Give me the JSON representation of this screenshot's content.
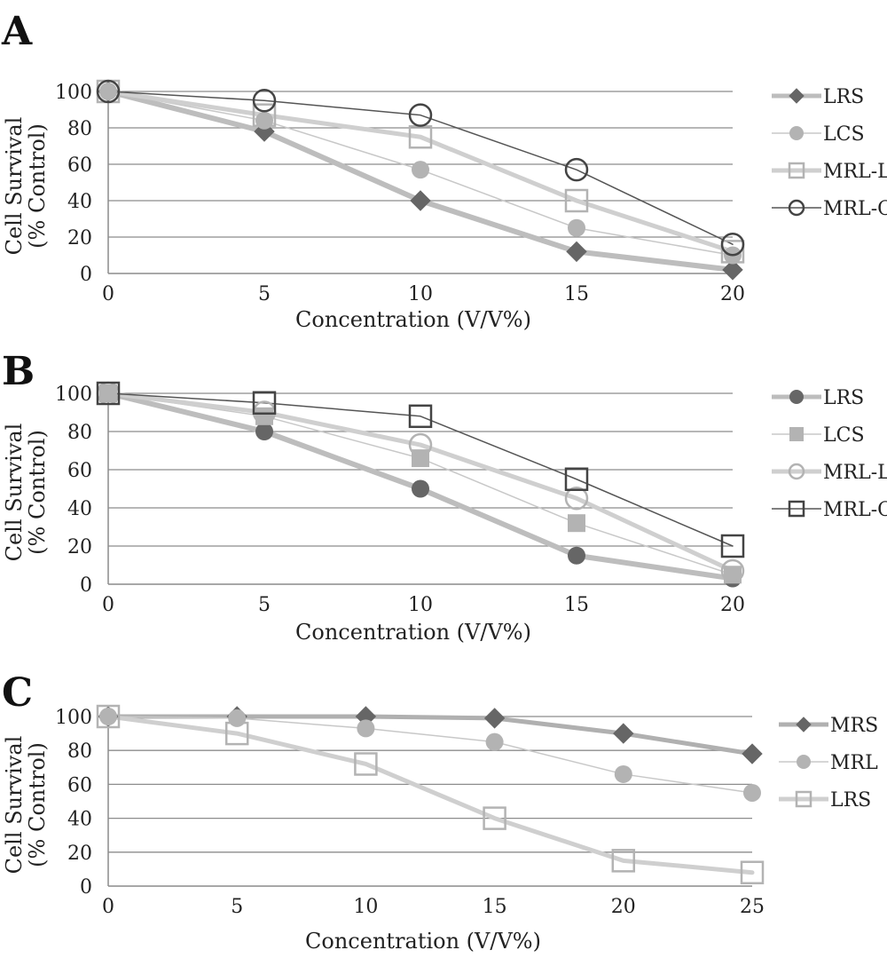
{
  "chart_data": [
    {
      "type": "line",
      "panel": "A",
      "xlabel": "Concentration (V/V%)",
      "ylabel": [
        "Cell Survival",
        "(% Control)"
      ],
      "x": [
        0,
        5,
        10,
        15,
        20
      ],
      "xticks": [
        "0",
        "5",
        "10",
        "15",
        "20"
      ],
      "yticks": [
        "0",
        "20",
        "40",
        "60",
        "80",
        "100"
      ],
      "ylim": [
        0,
        100
      ],
      "grid": true,
      "legend": "right",
      "series": [
        {
          "name": "LRS",
          "values": [
            100,
            78,
            40,
            12,
            2
          ],
          "marker": "diamond",
          "filled": true,
          "color": "#666666",
          "line": "#bdbdbd",
          "width": 6
        },
        {
          "name": "LCS",
          "values": [
            100,
            84,
            57,
            25,
            10
          ],
          "marker": "circle",
          "filled": true,
          "color": "#b3b3b3",
          "line": "#c8c8c8",
          "width": 1.5
        },
        {
          "name": "MRL-L",
          "values": [
            100,
            87,
            75,
            40,
            12
          ],
          "marker": "square",
          "filled": false,
          "color": "#b3b3b3",
          "line": "#cfcfcf",
          "width": 5
        },
        {
          "name": "MRL-C",
          "values": [
            100,
            95,
            87,
            57,
            16
          ],
          "marker": "circle",
          "filled": false,
          "color": "#444444",
          "line": "#555555",
          "width": 1.5
        }
      ]
    },
    {
      "type": "line",
      "panel": "B",
      "xlabel": "Concentration (V/V%)",
      "ylabel": [
        "Cell Survival",
        "(% Control)"
      ],
      "x": [
        0,
        5,
        10,
        15,
        20
      ],
      "xticks": [
        "0",
        "5",
        "10",
        "15",
        "20"
      ],
      "yticks": [
        "0",
        "20",
        "40",
        "60",
        "80",
        "100"
      ],
      "ylim": [
        0,
        100
      ],
      "grid": true,
      "legend": "right",
      "series": [
        {
          "name": "LRS",
          "values": [
            100,
            80,
            50,
            15,
            3
          ],
          "marker": "circle",
          "filled": true,
          "color": "#666666",
          "line": "#bdbdbd",
          "width": 6
        },
        {
          "name": "LCS",
          "values": [
            100,
            88,
            66,
            32,
            5
          ],
          "marker": "square",
          "filled": true,
          "color": "#b3b3b3",
          "line": "#c8c8c8",
          "width": 1.5
        },
        {
          "name": "MRL-L",
          "values": [
            100,
            90,
            73,
            45,
            7
          ],
          "marker": "circle",
          "filled": false,
          "color": "#b3b3b3",
          "line": "#cfcfcf",
          "width": 5
        },
        {
          "name": "MRL-C",
          "values": [
            100,
            95,
            88,
            55,
            20
          ],
          "marker": "square",
          "filled": false,
          "color": "#444444",
          "line": "#555555",
          "width": 1.5
        }
      ]
    },
    {
      "type": "line",
      "panel": "C",
      "xlabel": "Concentration (V/V%)",
      "ylabel": [
        "Cell Survival",
        "(% Control)"
      ],
      "x": [
        0,
        5,
        10,
        15,
        20,
        25
      ],
      "xticks": [
        "0",
        "5",
        "10",
        "15",
        "20",
        "25"
      ],
      "yticks": [
        "0",
        "20",
        "40",
        "60",
        "80",
        "100"
      ],
      "ylim": [
        0,
        100
      ],
      "grid": true,
      "legend": "right",
      "series": [
        {
          "name": "MRS",
          "values": [
            100,
            100,
            100,
            99,
            90,
            78
          ],
          "marker": "diamond",
          "filled": true,
          "color": "#666666",
          "line": "#b0b0b0",
          "width": 5
        },
        {
          "name": "MRL",
          "values": [
            100,
            99,
            93,
            85,
            66,
            55
          ],
          "marker": "circle",
          "filled": true,
          "color": "#b3b3b3",
          "line": "#c8c8c8",
          "width": 1.5
        },
        {
          "name": "LRS",
          "values": [
            100,
            90,
            72,
            40,
            15,
            8
          ],
          "marker": "square",
          "filled": false,
          "color": "#b3b3b3",
          "line": "#cfcfcf",
          "width": 5
        }
      ]
    }
  ]
}
